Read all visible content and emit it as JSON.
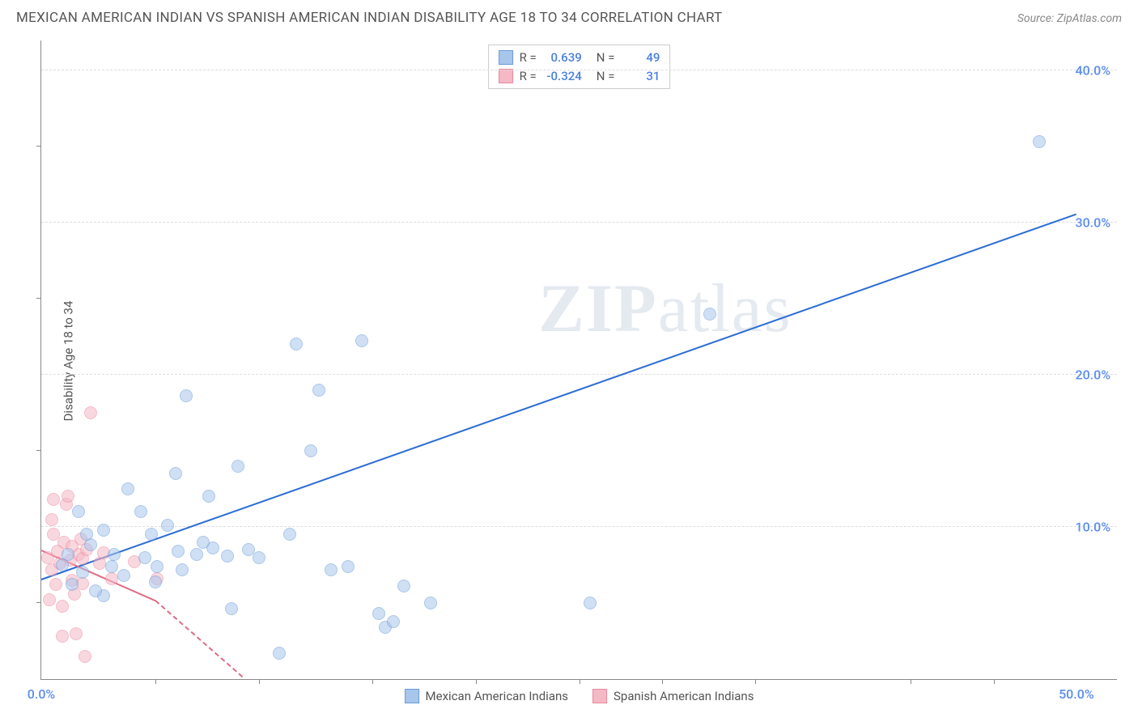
{
  "header": {
    "title": "MEXICAN AMERICAN INDIAN VS SPANISH AMERICAN INDIAN DISABILITY AGE 18 TO 34 CORRELATION CHART",
    "source": "Source: ZipAtlas.com"
  },
  "chart": {
    "type": "scatter",
    "y_axis_label": "Disability Age 18 to 34",
    "background_color": "#ffffff",
    "grid_color": "#e0e0e0",
    "axis_color": "#888888",
    "xlim": [
      0,
      52
    ],
    "ylim": [
      0,
      42
    ],
    "x_ticks_major": [
      0,
      50
    ],
    "x_ticks_minor": [
      5.5,
      10.5,
      16,
      21,
      26,
      30,
      34.5,
      42,
      46
    ],
    "y_ticks_major": [
      10,
      20,
      30,
      40
    ],
    "y_ticks_minor": [
      5,
      15,
      25,
      35
    ],
    "x_tick_labels": {
      "0": "0.0%",
      "50": "50.0%"
    },
    "y_tick_labels": {
      "10": "10.0%",
      "20": "20.0%",
      "30": "30.0%",
      "40": "40.0%"
    },
    "tick_label_color": "#5b8def",
    "tick_label_fontsize": 16,
    "marker_radius": 8,
    "marker_opacity": 0.55,
    "series_a": {
      "name": "Mexican American Indians",
      "fill_color": "#a8c5ec",
      "stroke_color": "#6b9bd8",
      "line_color": "#2b6cd4",
      "r_value": "0.639",
      "n_value": "49",
      "trend": {
        "x1": 0,
        "y1": 6.5,
        "x2": 50,
        "y2": 30.5
      },
      "points": [
        [
          1.3,
          8.2
        ],
        [
          2,
          7
        ],
        [
          2.4,
          8.8
        ],
        [
          1.5,
          6.2
        ],
        [
          3,
          9.8
        ],
        [
          3.5,
          8.2
        ],
        [
          4,
          6.8
        ],
        [
          4.2,
          12.5
        ],
        [
          5,
          8
        ],
        [
          5.3,
          9.5
        ],
        [
          5.6,
          7.4
        ],
        [
          6.1,
          10.1
        ],
        [
          6.5,
          13.5
        ],
        [
          6.6,
          8.4
        ],
        [
          7,
          18.6
        ],
        [
          7.5,
          8.2
        ],
        [
          8.1,
          12
        ],
        [
          8.3,
          8.6
        ],
        [
          9,
          8.1
        ],
        [
          9.2,
          4.6
        ],
        [
          9.5,
          14
        ],
        [
          10,
          8.5
        ],
        [
          10.5,
          8
        ],
        [
          11.5,
          1.7
        ],
        [
          12,
          9.5
        ],
        [
          12.3,
          22
        ],
        [
          13,
          15
        ],
        [
          13.4,
          19
        ],
        [
          14,
          7.2
        ],
        [
          14.8,
          7.4
        ],
        [
          15.5,
          22.2
        ],
        [
          16.3,
          4.3
        ],
        [
          16.6,
          3.4
        ],
        [
          17,
          3.8
        ],
        [
          17.5,
          6.1
        ],
        [
          18.8,
          5
        ],
        [
          26.5,
          5
        ],
        [
          32.3,
          24
        ],
        [
          48.2,
          35.3
        ],
        [
          3,
          5.5
        ],
        [
          4.8,
          11
        ],
        [
          2.2,
          9.5
        ],
        [
          1.8,
          11
        ],
        [
          5.5,
          6.4
        ],
        [
          2.6,
          5.8
        ],
        [
          3.4,
          7.4
        ],
        [
          6.8,
          7.2
        ],
        [
          1,
          7.5
        ],
        [
          7.8,
          9
        ]
      ]
    },
    "series_b": {
      "name": "Spanish American Indians",
      "fill_color": "#f5b8c5",
      "stroke_color": "#e8899f",
      "line_color": "#e06b85",
      "r_value": "-0.324",
      "n_value": "31",
      "trend_solid": {
        "x1": 0,
        "y1": 8.4,
        "x2": 5.5,
        "y2": 5.1
      },
      "trend_dash": {
        "x1": 5.5,
        "y1": 5.1,
        "x2": 9.7,
        "y2": 0.1
      },
      "points": [
        [
          0.3,
          8
        ],
        [
          0.5,
          7.2
        ],
        [
          0.6,
          9.5
        ],
        [
          0.7,
          6.2
        ],
        [
          0.8,
          8.4
        ],
        [
          0.4,
          5.2
        ],
        [
          0.5,
          10.5
        ],
        [
          0.9,
          7.6
        ],
        [
          1,
          4.8
        ],
        [
          1.1,
          9
        ],
        [
          1.2,
          11.5
        ],
        [
          1.3,
          12
        ],
        [
          1.4,
          7.8
        ],
        [
          1.5,
          6.5
        ],
        [
          1.6,
          5.6
        ],
        [
          1.7,
          3
        ],
        [
          1.8,
          8.2
        ],
        [
          1.9,
          9.2
        ],
        [
          2,
          7.9
        ],
        [
          2.1,
          1.5
        ],
        [
          2.2,
          8.5
        ],
        [
          0.6,
          11.8
        ],
        [
          2.4,
          17.5
        ],
        [
          2.8,
          7.6
        ],
        [
          3,
          8.3
        ],
        [
          3.4,
          6.6
        ],
        [
          4.5,
          7.7
        ],
        [
          5.6,
          6.6
        ],
        [
          1,
          2.8
        ],
        [
          1.5,
          8.7
        ],
        [
          2,
          6.3
        ]
      ]
    },
    "stats_box": {
      "r_label": "R = ",
      "n_label": "N = "
    },
    "watermark": {
      "zip": "ZIP",
      "atlas": "atlas"
    }
  }
}
